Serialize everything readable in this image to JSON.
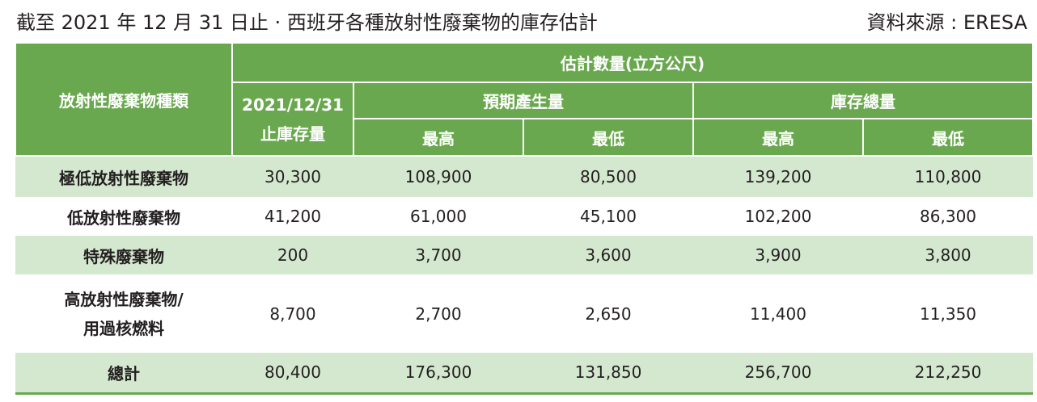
{
  "header": {
    "title": "截至 2021 年 12 月 31 日止 · 西班牙各種放射性廢棄物的庫存估計",
    "source": "資料來源 : ERESA"
  },
  "table": {
    "col_header": "放射性廢棄物種類",
    "estimate_header": "估計數量(立方公尺)",
    "stock_header_line1": "2021/12/31",
    "stock_header_line2": "止庫存量",
    "expected_header": "預期產生量",
    "total_stock_header": "庫存總量",
    "high_label": "最高",
    "low_label": "最低",
    "rows": [
      {
        "type": "極低放射性廢棄物",
        "values": [
          "30,300",
          "108,900",
          "80,500",
          "139,200",
          "110,800"
        ]
      },
      {
        "type": "低放射性廢棄物",
        "values": [
          "41,200",
          "61,000",
          "45,100",
          "102,200",
          "86,300"
        ]
      },
      {
        "type": "特殊廢棄物",
        "values": [
          "200",
          "3,700",
          "3,600",
          "3,900",
          "3,800"
        ]
      },
      {
        "type_line1": "高放射性廢棄物/",
        "type_line2": "用過核燃料",
        "values": [
          "8,700",
          "2,700",
          "2,650",
          "11,400",
          "11,350"
        ]
      },
      {
        "type": "總計",
        "values": [
          "80,400",
          "176,300",
          "131,850",
          "256,700",
          "212,250"
        ]
      }
    ]
  }
}
